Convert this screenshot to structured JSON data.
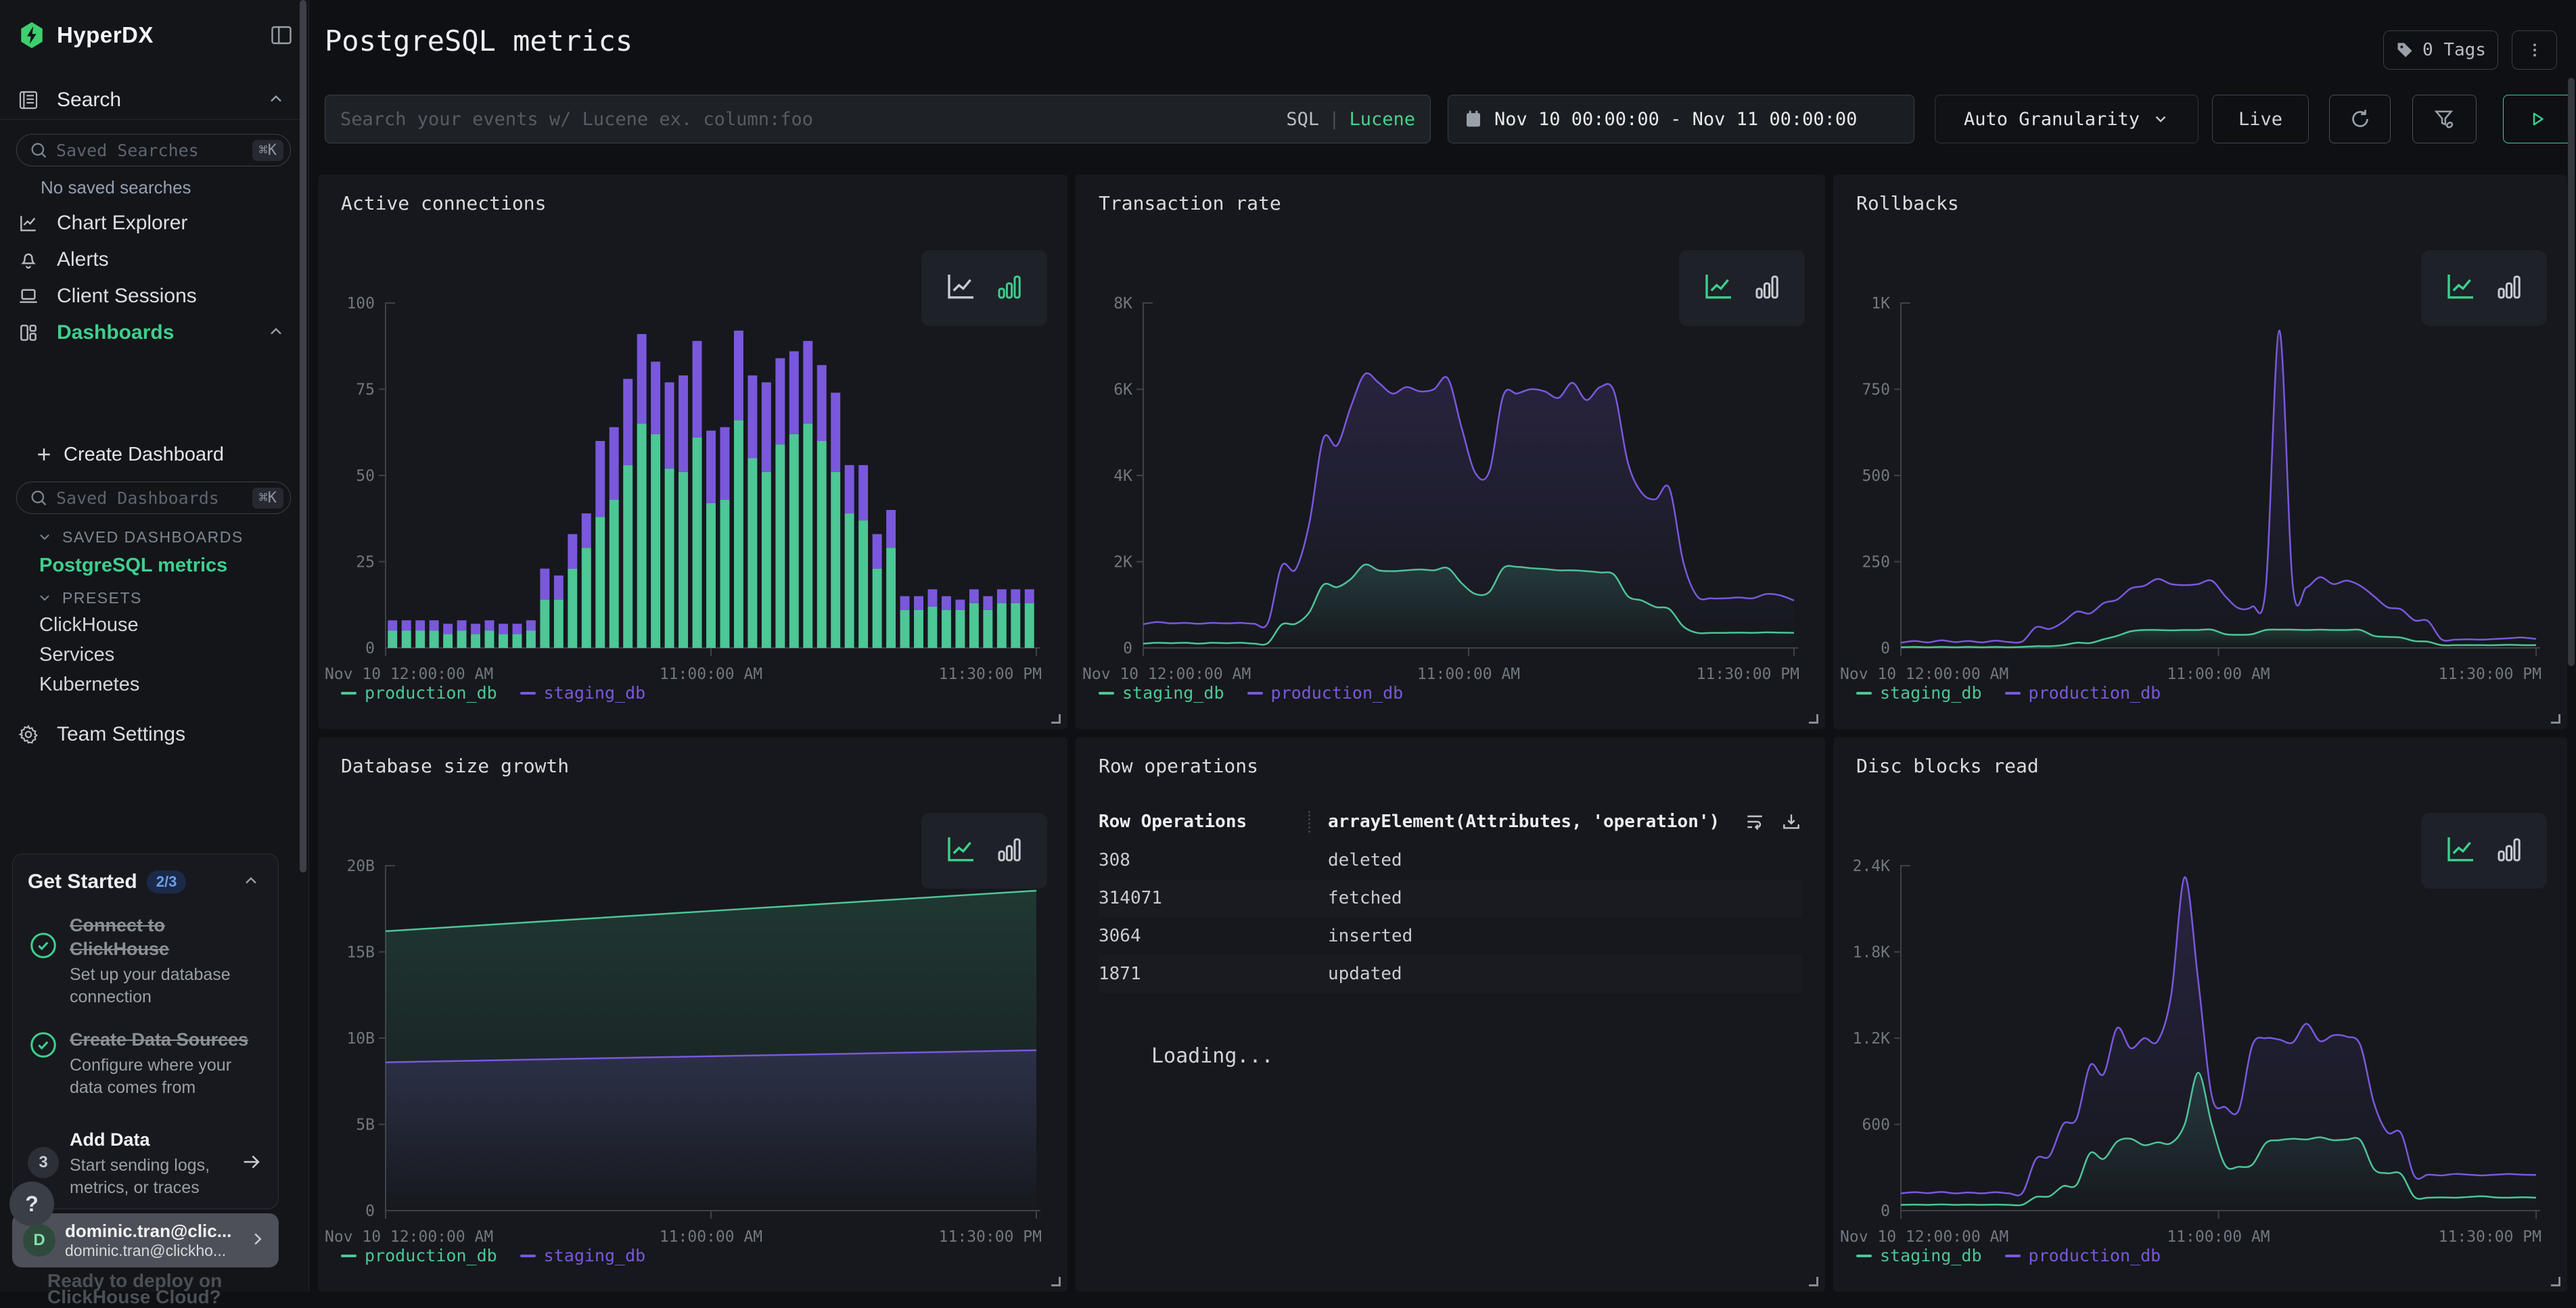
{
  "sidebar": {
    "brand": "HyperDX",
    "search_section": "Search",
    "saved_searches_placeholder": "Saved Searches",
    "kbd": "⌘K",
    "no_saved": "No saved searches",
    "nav": {
      "chart_explorer": "Chart Explorer",
      "alerts": "Alerts",
      "client_sessions": "Client Sessions",
      "dashboards": "Dashboards"
    },
    "create_dashboard": "Create Dashboard",
    "saved_dashboards_placeholder": "Saved Dashboards",
    "saved_dashboards_label": "SAVED DASHBOARDS",
    "saved_dashboard_item": "PostgreSQL metrics",
    "presets_label": "PRESETS",
    "presets": [
      "ClickHouse",
      "Services",
      "Kubernetes"
    ],
    "team_settings": "Team Settings",
    "get_started": {
      "title": "Get Started",
      "badge": "2/3",
      "steps": [
        {
          "title": "Connect to ClickHouse",
          "desc": "Set up your database connection",
          "done": true
        },
        {
          "title": "Create Data Sources",
          "desc": "Configure where your data comes from",
          "done": true
        },
        {
          "title": "Add Data",
          "desc": "Start sending logs, metrics, or traces",
          "number": "3"
        }
      ]
    },
    "help": "?",
    "user": {
      "initial": "D",
      "name": "dominic.tran@clic...",
      "email": "dominic.tran@clickho..."
    },
    "behind": {
      "line1": "Ready to deploy on",
      "line2": "ClickHouse Cloud?"
    }
  },
  "header": {
    "title": "PostgreSQL metrics",
    "tags": "0 Tags"
  },
  "toolbar": {
    "search_placeholder": "Search your events w/ Lucene ex. column:foo",
    "sql": "SQL",
    "divider": "|",
    "lucene": "Lucene",
    "time_range": "Nov 10 00:00:00 - Nov 11 00:00:00",
    "granularity": "Auto Granularity",
    "live": "Live"
  },
  "colors": {
    "green": "#4CC795",
    "purple": "#7A58DC",
    "accent": "#3ECF8E"
  },
  "panels": [
    {
      "title": "Active connections",
      "type": "bar",
      "active": "bar",
      "y_max": 100,
      "y_ticks": [
        "100",
        "75",
        "50",
        "25",
        "0"
      ],
      "x_ticks": [
        "Nov 10 12:00:00 AM",
        "11:00:00 AM",
        "11:30:00 PM"
      ],
      "series": [
        {
          "name": "production_db",
          "color": "#4CC795",
          "values": [
            5,
            5,
            5,
            5,
            4,
            5,
            4,
            5,
            4,
            4,
            5,
            14,
            14,
            23,
            29,
            38,
            43,
            53,
            65,
            62,
            52,
            51,
            61,
            42,
            43,
            66,
            55,
            51,
            59,
            62,
            65,
            60,
            51,
            39,
            37,
            23,
            29,
            11,
            11,
            12,
            11,
            11,
            13,
            11,
            13,
            13,
            13
          ]
        },
        {
          "name": "staging_db",
          "color": "#7A58DC",
          "values": [
            3,
            3,
            3,
            3,
            3,
            3,
            3,
            3,
            3,
            3,
            3,
            9,
            7,
            10,
            10,
            22,
            21,
            25,
            26,
            21,
            25,
            28,
            28,
            21,
            21,
            26,
            24,
            26,
            25,
            24,
            24,
            22,
            23,
            14,
            16,
            10,
            11,
            4,
            4,
            5,
            4,
            3,
            4,
            4,
            4,
            4,
            4
          ]
        }
      ]
    },
    {
      "title": "Transaction rate",
      "type": "line",
      "active": "line",
      "y_max": 8000,
      "y_ticks": [
        "8K",
        "6K",
        "4K",
        "2K",
        "0"
      ],
      "x_ticks": [
        "Nov 10 12:00:00 AM",
        "11:00:00 AM",
        "11:30:00 PM"
      ],
      "series": [
        {
          "name": "staging_db",
          "color": "#4CC795",
          "values": [
            100,
            120,
            110,
            120,
            100,
            120,
            110,
            120,
            100,
            110,
            540,
            560,
            830,
            1460,
            1410,
            1600,
            1930,
            1800,
            1780,
            1800,
            1820,
            1800,
            1850,
            1500,
            1250,
            1300,
            1850,
            1880,
            1850,
            1830,
            1800,
            1800,
            1780,
            1750,
            1700,
            1200,
            1100,
            950,
            900,
            500,
            350,
            350,
            350,
            355,
            350,
            360,
            355,
            350
          ]
        },
        {
          "name": "production_db",
          "color": "#7A58DC",
          "values": [
            550,
            600,
            570,
            580,
            560,
            580,
            570,
            580,
            560,
            580,
            1900,
            1820,
            2900,
            4850,
            4700,
            5600,
            6350,
            6150,
            5900,
            6050,
            5950,
            6000,
            6250,
            5100,
            4050,
            4100,
            5850,
            5900,
            6000,
            5950,
            5800,
            6150,
            5750,
            6050,
            5950,
            4300,
            3600,
            3450,
            3700,
            2000,
            1200,
            1150,
            1150,
            1170,
            1150,
            1250,
            1220,
            1100
          ]
        }
      ]
    },
    {
      "title": "Rollbacks",
      "type": "line",
      "active": "line",
      "y_max": 1000,
      "y_ticks": [
        "1K",
        "750",
        "500",
        "250",
        "0"
      ],
      "x_ticks": [
        "Nov 10 12:00:00 AM",
        "11:00:00 AM",
        "11:30:00 PM"
      ],
      "series": [
        {
          "name": "staging_db",
          "color": "#4CC795",
          "values": [
            2,
            3,
            2,
            3,
            2,
            3,
            2,
            3,
            2,
            3,
            5,
            5,
            8,
            15,
            14,
            25,
            35,
            48,
            52,
            52,
            51,
            52,
            52,
            53,
            40,
            38,
            40,
            52,
            53,
            53,
            52,
            53,
            52,
            52,
            52,
            35,
            32,
            30,
            20,
            18,
            8,
            8,
            8,
            8,
            8,
            9,
            8,
            8
          ]
        },
        {
          "name": "production_db",
          "color": "#7A58DC",
          "values": [
            15,
            20,
            16,
            22,
            17,
            20,
            16,
            21,
            17,
            19,
            60,
            55,
            75,
            105,
            100,
            130,
            140,
            172,
            180,
            200,
            185,
            182,
            185,
            195,
            150,
            115,
            120,
            175,
            920,
            180,
            175,
            205,
            185,
            195,
            180,
            150,
            118,
            112,
            80,
            78,
            25,
            24,
            25,
            24,
            26,
            28,
            30,
            26
          ]
        }
      ]
    },
    {
      "title": "Database size growth",
      "type": "line",
      "active": "line",
      "y_max": 20,
      "y_ticks": [
        "20B",
        "15B",
        "10B",
        "5B",
        "0"
      ],
      "x_ticks": [
        "Nov 10 12:00:00 AM",
        "11:00:00 AM",
        "11:30:00 PM"
      ],
      "series": [
        {
          "name": "production_db",
          "color": "#4CC795",
          "values": [
            16.2,
            16.67,
            17.14,
            17.61,
            18.08,
            18.55
          ]
        },
        {
          "name": "staging_db",
          "color": "#7A58DC",
          "values": [
            8.6,
            8.74,
            8.88,
            9.02,
            9.16,
            9.3
          ]
        }
      ]
    },
    {
      "title": "Row operations",
      "type": "table",
      "table": {
        "columns": [
          "Row Operations",
          "arrayElement(Attributes, 'operation')"
        ],
        "rows": [
          [
            "308",
            "deleted"
          ],
          [
            "314071",
            "fetched"
          ],
          [
            "3064",
            "inserted"
          ],
          [
            "1871",
            "updated"
          ]
        ],
        "status": "Loading..."
      }
    },
    {
      "title": "Disc blocks read",
      "type": "line",
      "active": "line",
      "y_max": 2400,
      "y_ticks": [
        "2.4K",
        "1.8K",
        "1.2K",
        "600",
        "0"
      ],
      "x_ticks": [
        "Nov 10 12:00:00 AM",
        "11:00:00 AM",
        "11:30:00 PM"
      ],
      "series": [
        {
          "name": "staging_db",
          "color": "#4CC795",
          "values": [
            40,
            42,
            40,
            43,
            40,
            42,
            40,
            42,
            40,
            41,
            95,
            100,
            170,
            180,
            400,
            360,
            480,
            500,
            455,
            475,
            470,
            600,
            960,
            600,
            315,
            305,
            320,
            470,
            490,
            500,
            495,
            510,
            490,
            495,
            490,
            290,
            260,
            255,
            95,
            90,
            92,
            90,
            95,
            100,
            92,
            90,
            93,
            90
          ]
        },
        {
          "name": "production_db",
          "color": "#7A58DC",
          "values": [
            120,
            128,
            122,
            130,
            120,
            126,
            120,
            128,
            120,
            124,
            360,
            380,
            600,
            640,
            1010,
            950,
            1270,
            1130,
            1200,
            1180,
            1500,
            2320,
            1600,
            800,
            720,
            700,
            1150,
            1200,
            1190,
            1170,
            1300,
            1180,
            1220,
            1210,
            1150,
            750,
            545,
            540,
            240,
            250,
            245,
            255,
            250,
            245,
            250,
            255,
            250,
            248
          ]
        }
      ]
    }
  ]
}
